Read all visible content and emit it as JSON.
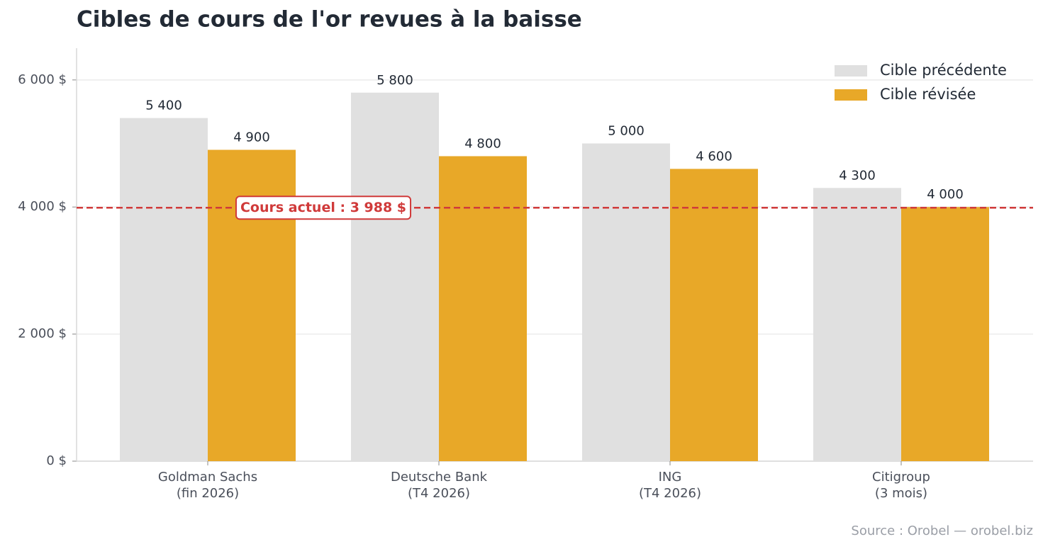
{
  "chart_data": {
    "type": "bar",
    "title": "Cibles de cours de l'or revues à la baisse",
    "source": "Source : Orobel — orobel.biz",
    "categories": [
      "Goldman Sachs\n(fin 2026)",
      "Deutsche Bank\n(T4 2026)",
      "ING\n(T4 2026)",
      "Citigroup\n(3 mois)"
    ],
    "series": [
      {
        "name": "Cible précédente",
        "color": "#e0e0e0",
        "values": [
          5400,
          5800,
          5000,
          4300
        ],
        "value_labels": [
          "5 400",
          "5 800",
          "5 000",
          "4 300"
        ]
      },
      {
        "name": "Cible révisée",
        "color": "#e8a828",
        "values": [
          4900,
          4800,
          4600,
          4000
        ],
        "value_labels": [
          "4 900",
          "4 800",
          "4 600",
          "4 000"
        ]
      }
    ],
    "ylim": [
      0,
      6500
    ],
    "yticks": [
      {
        "value": 0,
        "label": "0 $"
      },
      {
        "value": 2000,
        "label": "2 000 $"
      },
      {
        "value": 4000,
        "label": "4 000 $"
      },
      {
        "value": 6000,
        "label": "6 000 $"
      }
    ],
    "grid": true,
    "legend": "upper right",
    "reference_line": {
      "value": 3988,
      "label": "Cours actuel : 3 988 $",
      "color": "#d03a3a"
    }
  }
}
